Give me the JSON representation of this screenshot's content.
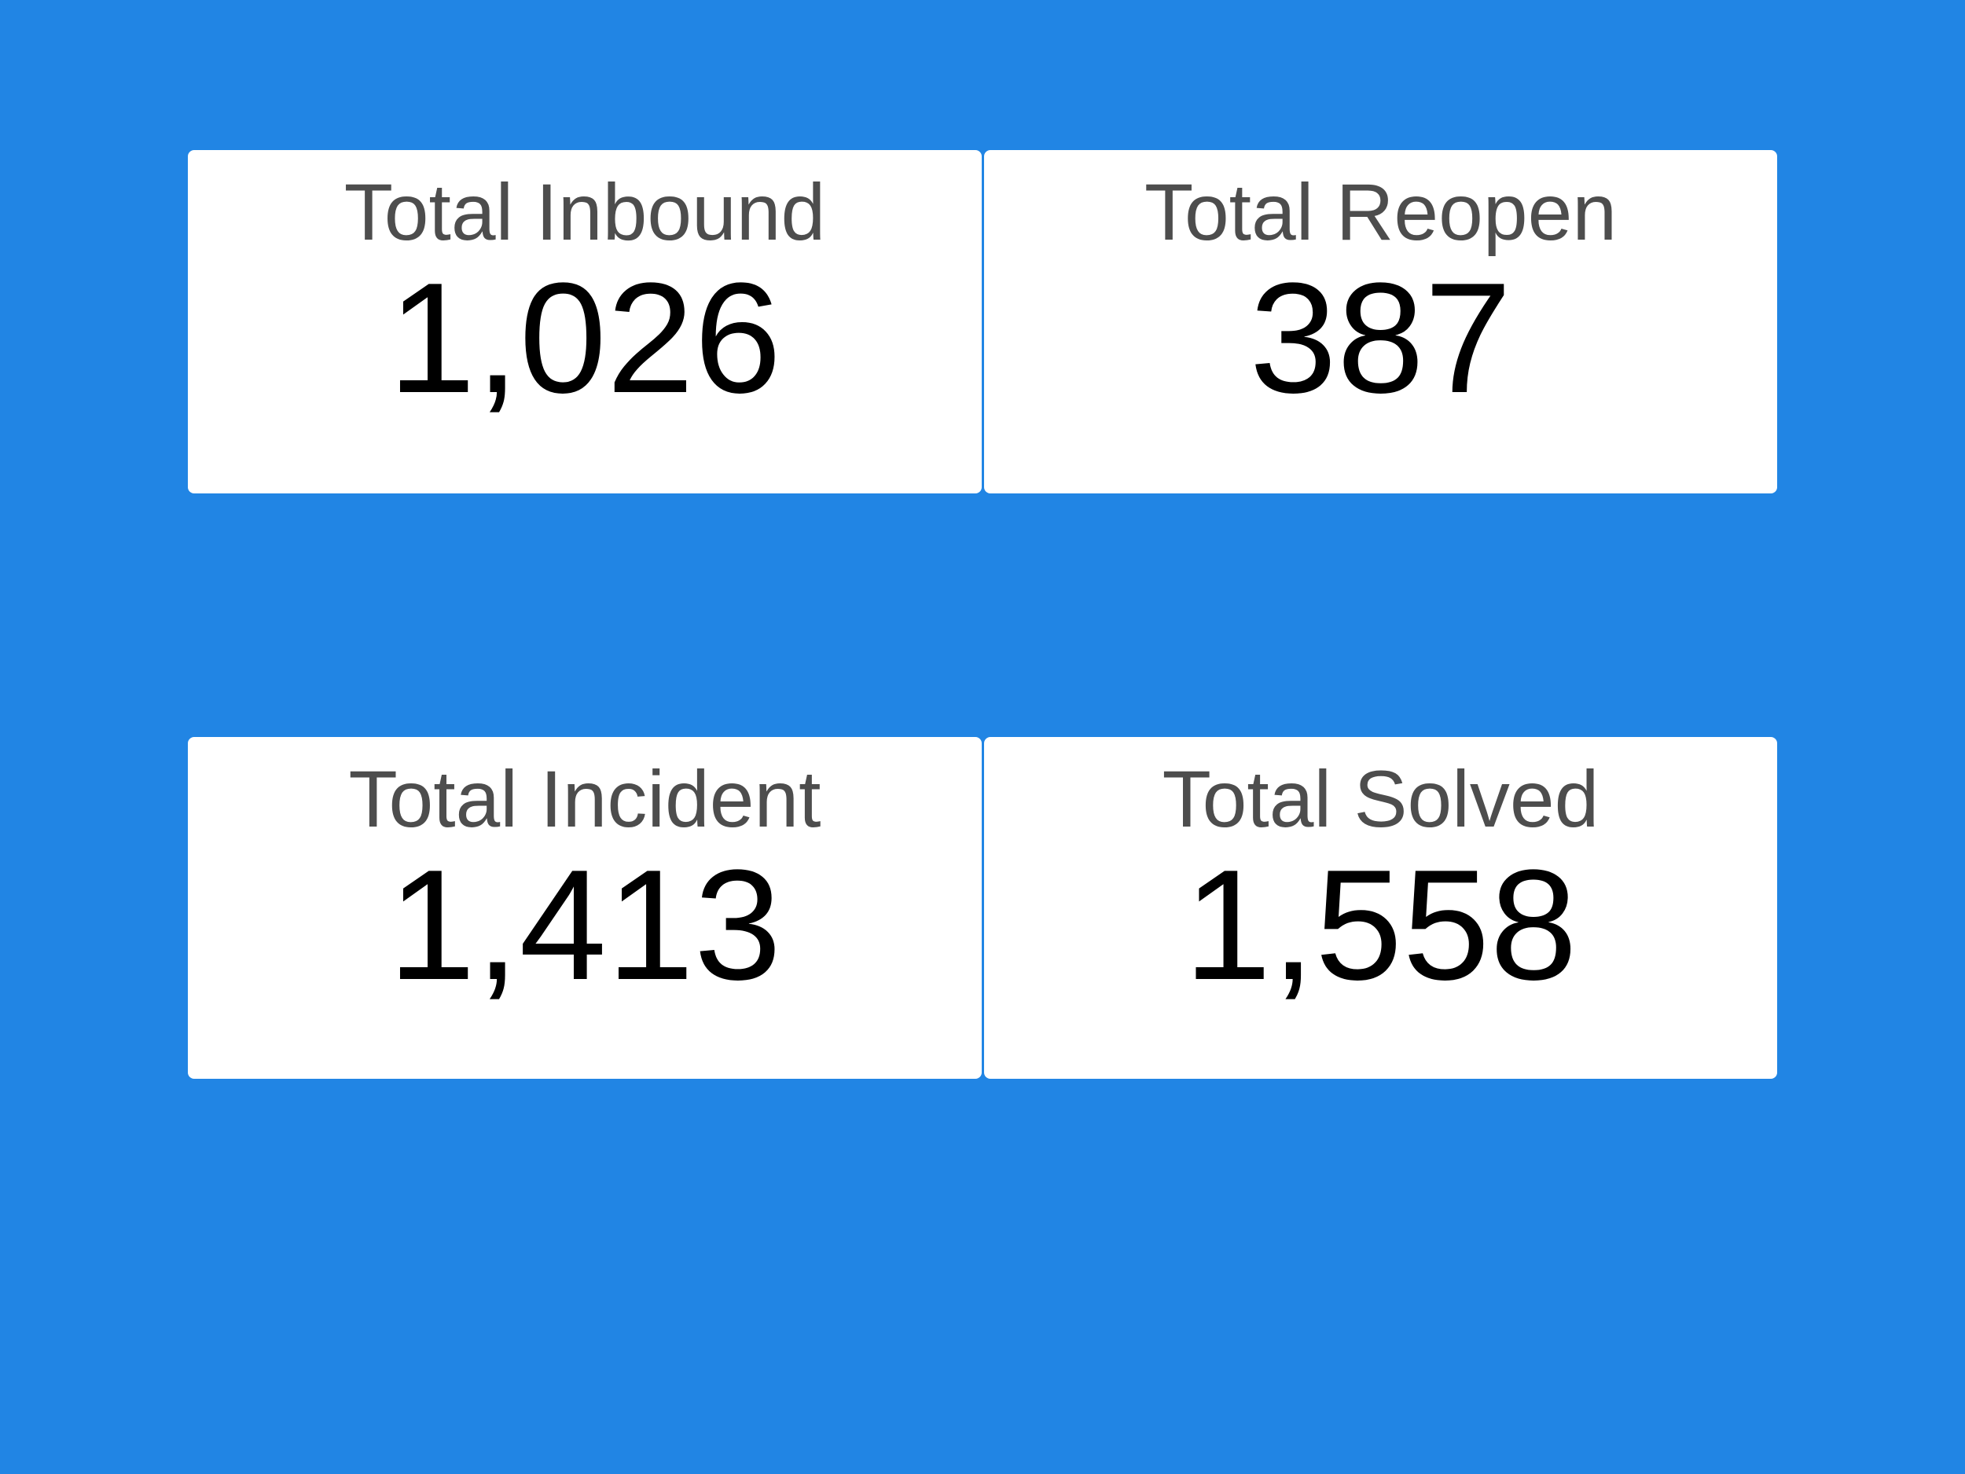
{
  "scorecards": [
    {
      "label": "Total Inbound",
      "value": "1,026"
    },
    {
      "label": "Total Reopen",
      "value": "387"
    },
    {
      "label": "Total Incident",
      "value": "1,413"
    },
    {
      "label": "Total Solved",
      "value": "1,558"
    }
  ],
  "colors": {
    "background": "#2185E4",
    "card": "#FFFFFF",
    "label_text": "#4D4D4D",
    "value_text": "#000000"
  }
}
